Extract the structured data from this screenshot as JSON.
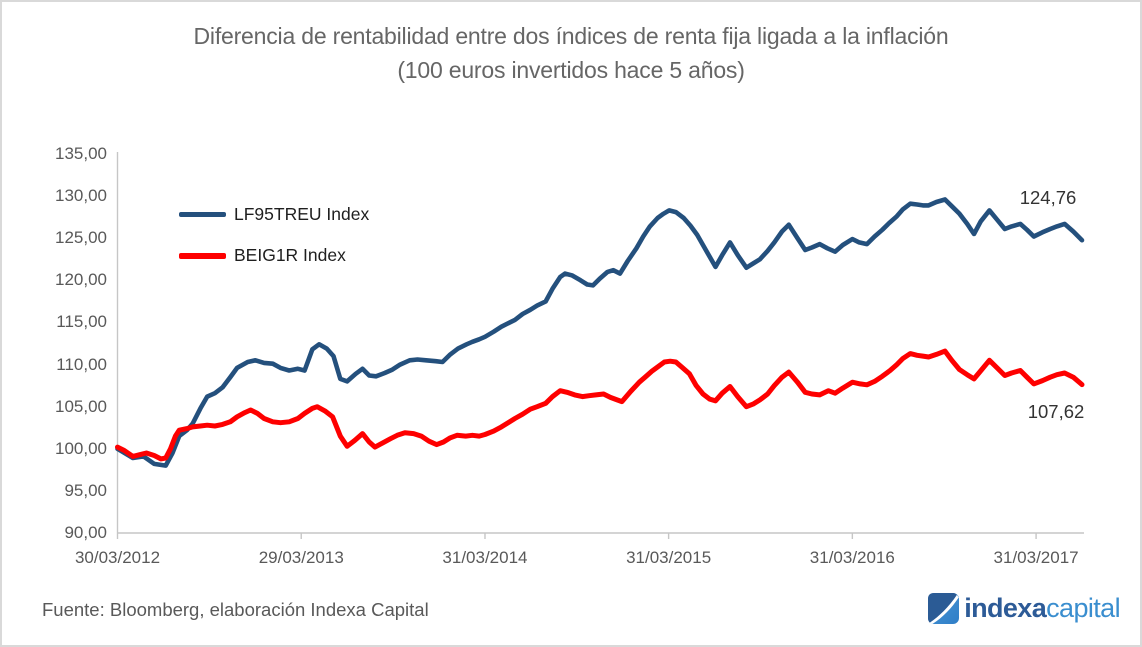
{
  "title": {
    "line1": "Diferencia de rentabilidad entre dos índices de renta fija ligada a la inflación",
    "line2": "(100 euros invertidos hace 5 años)"
  },
  "footer": {
    "source": "Fuente: Bloomberg, elaboración Indexa Capital"
  },
  "logo": {
    "text_bold": "indexa",
    "text_light": "capital",
    "color_bold": "#2d5b97",
    "color_light": "#3a8ecf"
  },
  "colors": {
    "axis": "#c6c6c6",
    "label_gray": "#595959",
    "title_gray": "#666666"
  },
  "chart_data": {
    "type": "line",
    "title": "Diferencia de rentabilidad entre dos índices de renta fija ligada a la inflación",
    "subtitle": "(100 euros invertidos hace 5 años)",
    "xlabel": "",
    "ylabel": "",
    "ylim": [
      90,
      135
    ],
    "ytick_step": 5,
    "grid": false,
    "legend_position": "top-left-inside",
    "yticks": [
      {
        "label": "135,00",
        "value": 135
      },
      {
        "label": "130,00",
        "value": 130
      },
      {
        "label": "125,00",
        "value": 125
      },
      {
        "label": "120,00",
        "value": 120
      },
      {
        "label": "115,00",
        "value": 115
      },
      {
        "label": "110,00",
        "value": 110
      },
      {
        "label": "105,00",
        "value": 105
      },
      {
        "label": "100,00",
        "value": 100
      },
      {
        "label": "95,00",
        "value": 95
      },
      {
        "label": "90,00",
        "value": 90
      }
    ],
    "xticks": [
      {
        "label": "30/03/2012",
        "t": 0.0
      },
      {
        "label": "29/03/2013",
        "t": 0.1905
      },
      {
        "label": "31/03/2014",
        "t": 0.381
      },
      {
        "label": "31/03/2015",
        "t": 0.5714
      },
      {
        "label": "31/03/2016",
        "t": 0.7619
      },
      {
        "label": "31/03/2017",
        "t": 0.9524
      }
    ],
    "series": [
      {
        "name": "LF95TREU Index",
        "color": "#24507D",
        "stroke_width": 4.6,
        "end_label": "124,76",
        "end_value": 124.76,
        "points": [
          [
            0.0,
            100.0
          ],
          [
            0.016,
            98.9
          ],
          [
            0.027,
            99.1
          ],
          [
            0.038,
            98.2
          ],
          [
            0.05,
            98.0
          ],
          [
            0.057,
            99.5
          ],
          [
            0.064,
            101.5
          ],
          [
            0.072,
            102.2
          ],
          [
            0.078,
            103.0
          ],
          [
            0.086,
            104.8
          ],
          [
            0.093,
            106.2
          ],
          [
            0.101,
            106.6
          ],
          [
            0.109,
            107.3
          ],
          [
            0.117,
            108.5
          ],
          [
            0.124,
            109.6
          ],
          [
            0.135,
            110.3
          ],
          [
            0.143,
            110.5
          ],
          [
            0.152,
            110.2
          ],
          [
            0.161,
            110.1
          ],
          [
            0.169,
            109.6
          ],
          [
            0.178,
            109.3
          ],
          [
            0.187,
            109.5
          ],
          [
            0.194,
            109.3
          ],
          [
            0.202,
            111.8
          ],
          [
            0.209,
            112.4
          ],
          [
            0.217,
            111.9
          ],
          [
            0.224,
            111.0
          ],
          [
            0.231,
            108.3
          ],
          [
            0.238,
            108.0
          ],
          [
            0.247,
            108.9
          ],
          [
            0.254,
            109.5
          ],
          [
            0.261,
            108.7
          ],
          [
            0.268,
            108.6
          ],
          [
            0.277,
            109.0
          ],
          [
            0.285,
            109.4
          ],
          [
            0.293,
            110.0
          ],
          [
            0.303,
            110.5
          ],
          [
            0.311,
            110.6
          ],
          [
            0.32,
            110.5
          ],
          [
            0.33,
            110.4
          ],
          [
            0.337,
            110.3
          ],
          [
            0.345,
            111.2
          ],
          [
            0.353,
            111.9
          ],
          [
            0.362,
            112.4
          ],
          [
            0.368,
            112.7
          ],
          [
            0.375,
            113.0
          ],
          [
            0.381,
            113.3
          ],
          [
            0.39,
            113.9
          ],
          [
            0.398,
            114.5
          ],
          [
            0.405,
            114.9
          ],
          [
            0.412,
            115.3
          ],
          [
            0.42,
            116.0
          ],
          [
            0.428,
            116.5
          ],
          [
            0.435,
            117.0
          ],
          [
            0.444,
            117.5
          ],
          [
            0.451,
            119.0
          ],
          [
            0.459,
            120.4
          ],
          [
            0.464,
            120.8
          ],
          [
            0.471,
            120.6
          ],
          [
            0.48,
            120.0
          ],
          [
            0.487,
            119.5
          ],
          [
            0.493,
            119.4
          ],
          [
            0.5,
            120.2
          ],
          [
            0.508,
            121.0
          ],
          [
            0.514,
            121.2
          ],
          [
            0.521,
            120.8
          ],
          [
            0.529,
            122.3
          ],
          [
            0.538,
            123.8
          ],
          [
            0.545,
            125.2
          ],
          [
            0.552,
            126.4
          ],
          [
            0.56,
            127.4
          ],
          [
            0.566,
            127.9
          ],
          [
            0.572,
            128.3
          ],
          [
            0.579,
            128.1
          ],
          [
            0.587,
            127.4
          ],
          [
            0.594,
            126.5
          ],
          [
            0.601,
            125.4
          ],
          [
            0.608,
            124.0
          ],
          [
            0.614,
            122.8
          ],
          [
            0.62,
            121.6
          ],
          [
            0.627,
            123.0
          ],
          [
            0.635,
            124.5
          ],
          [
            0.643,
            123.0
          ],
          [
            0.652,
            121.5
          ],
          [
            0.659,
            122.0
          ],
          [
            0.666,
            122.5
          ],
          [
            0.674,
            123.5
          ],
          [
            0.681,
            124.5
          ],
          [
            0.689,
            125.8
          ],
          [
            0.696,
            126.6
          ],
          [
            0.705,
            125.0
          ],
          [
            0.713,
            123.6
          ],
          [
            0.72,
            123.9
          ],
          [
            0.728,
            124.3
          ],
          [
            0.736,
            123.8
          ],
          [
            0.744,
            123.4
          ],
          [
            0.752,
            124.2
          ],
          [
            0.762,
            124.9
          ],
          [
            0.769,
            124.5
          ],
          [
            0.777,
            124.3
          ],
          [
            0.785,
            125.2
          ],
          [
            0.793,
            126.0
          ],
          [
            0.8,
            126.8
          ],
          [
            0.808,
            127.6
          ],
          [
            0.814,
            128.4
          ],
          [
            0.822,
            129.1
          ],
          [
            0.829,
            129.0
          ],
          [
            0.835,
            128.9
          ],
          [
            0.841,
            128.9
          ],
          [
            0.849,
            129.3
          ],
          [
            0.858,
            129.6
          ],
          [
            0.865,
            128.8
          ],
          [
            0.873,
            127.9
          ],
          [
            0.881,
            126.7
          ],
          [
            0.888,
            125.5
          ],
          [
            0.895,
            127.0
          ],
          [
            0.904,
            128.3
          ],
          [
            0.912,
            127.2
          ],
          [
            0.92,
            126.1
          ],
          [
            0.927,
            126.4
          ],
          [
            0.936,
            126.7
          ],
          [
            0.943,
            126.0
          ],
          [
            0.95,
            125.2
          ],
          [
            0.959,
            125.7
          ],
          [
            0.967,
            126.1
          ],
          [
            0.974,
            126.4
          ],
          [
            0.982,
            126.7
          ],
          [
            0.991,
            125.8
          ],
          [
            1.0,
            124.76
          ]
        ]
      },
      {
        "name": "BEIG1R Index",
        "color": "#FE0000",
        "stroke_width": 5.0,
        "end_label": "107,62",
        "end_value": 107.62,
        "points": [
          [
            0.0,
            100.2
          ],
          [
            0.007,
            99.8
          ],
          [
            0.016,
            99.1
          ],
          [
            0.023,
            99.3
          ],
          [
            0.03,
            99.5
          ],
          [
            0.038,
            99.2
          ],
          [
            0.045,
            98.8
          ],
          [
            0.05,
            98.9
          ],
          [
            0.055,
            100.0
          ],
          [
            0.06,
            101.5
          ],
          [
            0.064,
            102.2
          ],
          [
            0.072,
            102.4
          ],
          [
            0.078,
            102.6
          ],
          [
            0.086,
            102.7
          ],
          [
            0.093,
            102.8
          ],
          [
            0.101,
            102.7
          ],
          [
            0.109,
            102.9
          ],
          [
            0.117,
            103.2
          ],
          [
            0.124,
            103.8
          ],
          [
            0.132,
            104.3
          ],
          [
            0.138,
            104.6
          ],
          [
            0.145,
            104.2
          ],
          [
            0.152,
            103.6
          ],
          [
            0.161,
            103.2
          ],
          [
            0.169,
            103.1
          ],
          [
            0.178,
            103.2
          ],
          [
            0.187,
            103.6
          ],
          [
            0.194,
            104.2
          ],
          [
            0.202,
            104.8
          ],
          [
            0.207,
            105.0
          ],
          [
            0.215,
            104.5
          ],
          [
            0.223,
            103.8
          ],
          [
            0.231,
            101.5
          ],
          [
            0.238,
            100.3
          ],
          [
            0.246,
            101.0
          ],
          [
            0.254,
            101.8
          ],
          [
            0.261,
            100.8
          ],
          [
            0.267,
            100.2
          ],
          [
            0.275,
            100.7
          ],
          [
            0.283,
            101.2
          ],
          [
            0.29,
            101.6
          ],
          [
            0.298,
            101.9
          ],
          [
            0.307,
            101.8
          ],
          [
            0.315,
            101.5
          ],
          [
            0.323,
            100.9
          ],
          [
            0.331,
            100.5
          ],
          [
            0.338,
            100.8
          ],
          [
            0.345,
            101.3
          ],
          [
            0.352,
            101.6
          ],
          [
            0.361,
            101.5
          ],
          [
            0.368,
            101.6
          ],
          [
            0.375,
            101.5
          ],
          [
            0.381,
            101.7
          ],
          [
            0.39,
            102.1
          ],
          [
            0.398,
            102.6
          ],
          [
            0.405,
            103.1
          ],
          [
            0.412,
            103.6
          ],
          [
            0.42,
            104.1
          ],
          [
            0.428,
            104.7
          ],
          [
            0.435,
            105.0
          ],
          [
            0.444,
            105.4
          ],
          [
            0.451,
            106.2
          ],
          [
            0.459,
            106.9
          ],
          [
            0.466,
            106.7
          ],
          [
            0.474,
            106.4
          ],
          [
            0.482,
            106.2
          ],
          [
            0.489,
            106.3
          ],
          [
            0.496,
            106.4
          ],
          [
            0.504,
            106.5
          ],
          [
            0.511,
            106.1
          ],
          [
            0.518,
            105.8
          ],
          [
            0.523,
            105.6
          ],
          [
            0.532,
            106.8
          ],
          [
            0.541,
            107.9
          ],
          [
            0.547,
            108.5
          ],
          [
            0.554,
            109.2
          ],
          [
            0.561,
            109.8
          ],
          [
            0.567,
            110.3
          ],
          [
            0.573,
            110.4
          ],
          [
            0.579,
            110.3
          ],
          [
            0.586,
            109.6
          ],
          [
            0.593,
            108.9
          ],
          [
            0.6,
            107.5
          ],
          [
            0.607,
            106.5
          ],
          [
            0.614,
            105.9
          ],
          [
            0.62,
            105.7
          ],
          [
            0.627,
            106.6
          ],
          [
            0.635,
            107.4
          ],
          [
            0.643,
            106.2
          ],
          [
            0.652,
            105.0
          ],
          [
            0.659,
            105.3
          ],
          [
            0.666,
            105.8
          ],
          [
            0.674,
            106.5
          ],
          [
            0.681,
            107.5
          ],
          [
            0.689,
            108.5
          ],
          [
            0.696,
            109.1
          ],
          [
            0.705,
            107.9
          ],
          [
            0.713,
            106.7
          ],
          [
            0.72,
            106.5
          ],
          [
            0.728,
            106.4
          ],
          [
            0.737,
            106.9
          ],
          [
            0.744,
            106.6
          ],
          [
            0.752,
            107.2
          ],
          [
            0.762,
            107.9
          ],
          [
            0.77,
            107.7
          ],
          [
            0.777,
            107.6
          ],
          [
            0.785,
            108.0
          ],
          [
            0.793,
            108.6
          ],
          [
            0.801,
            109.3
          ],
          [
            0.808,
            110.0
          ],
          [
            0.814,
            110.7
          ],
          [
            0.822,
            111.3
          ],
          [
            0.829,
            111.1
          ],
          [
            0.835,
            111.0
          ],
          [
            0.841,
            110.9
          ],
          [
            0.849,
            111.2
          ],
          [
            0.858,
            111.6
          ],
          [
            0.865,
            110.5
          ],
          [
            0.873,
            109.4
          ],
          [
            0.881,
            108.8
          ],
          [
            0.888,
            108.3
          ],
          [
            0.896,
            109.4
          ],
          [
            0.904,
            110.5
          ],
          [
            0.912,
            109.6
          ],
          [
            0.92,
            108.7
          ],
          [
            0.927,
            109.0
          ],
          [
            0.936,
            109.3
          ],
          [
            0.943,
            108.5
          ],
          [
            0.95,
            107.7
          ],
          [
            0.959,
            108.1
          ],
          [
            0.967,
            108.5
          ],
          [
            0.974,
            108.8
          ],
          [
            0.982,
            109.0
          ],
          [
            0.991,
            108.5
          ],
          [
            1.0,
            107.62
          ]
        ]
      }
    ]
  }
}
